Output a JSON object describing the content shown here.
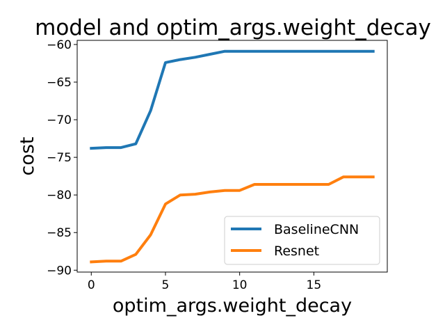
{
  "chart_data": {
    "type": "line",
    "title": "model and optim_args.weight_decay",
    "xlabel": "optim_args.weight_decay",
    "ylabel": "cost",
    "xlim": [
      -0.95,
      19.95
    ],
    "ylim": [
      -90.25,
      -59.45
    ],
    "xticks": [
      0,
      5,
      10,
      15
    ],
    "xtick_labels": [
      "0",
      "5",
      "10",
      "15"
    ],
    "yticks": [
      -90,
      -85,
      -80,
      -75,
      -70,
      -65,
      -60
    ],
    "ytick_labels": [
      "−90",
      "−85",
      "−80",
      "−75",
      "−70",
      "−65",
      "−60"
    ],
    "grid": false,
    "legend_position": "lower-right",
    "x": [
      0,
      1,
      2,
      3,
      4,
      5,
      6,
      7,
      8,
      9,
      10,
      11,
      12,
      13,
      14,
      15,
      16,
      17,
      18,
      19
    ],
    "series": [
      {
        "name": "BaselineCNN",
        "color": "#1f77b4",
        "values": [
          -73.8,
          -73.7,
          -73.7,
          -73.2,
          -68.8,
          -62.4,
          -62.0,
          -61.7,
          -61.3,
          -60.9,
          -60.9,
          -60.9,
          -60.9,
          -60.9,
          -60.9,
          -60.9,
          -60.9,
          -60.9,
          -60.9,
          -60.9
        ]
      },
      {
        "name": "Resnet",
        "color": "#ff7f0e",
        "values": [
          -88.9,
          -88.8,
          -88.8,
          -87.9,
          -85.3,
          -81.2,
          -80.0,
          -79.9,
          -79.6,
          -79.4,
          -79.4,
          -78.6,
          -78.6,
          -78.6,
          -78.6,
          -78.6,
          -78.6,
          -77.6,
          -77.6,
          -77.6
        ]
      }
    ]
  }
}
